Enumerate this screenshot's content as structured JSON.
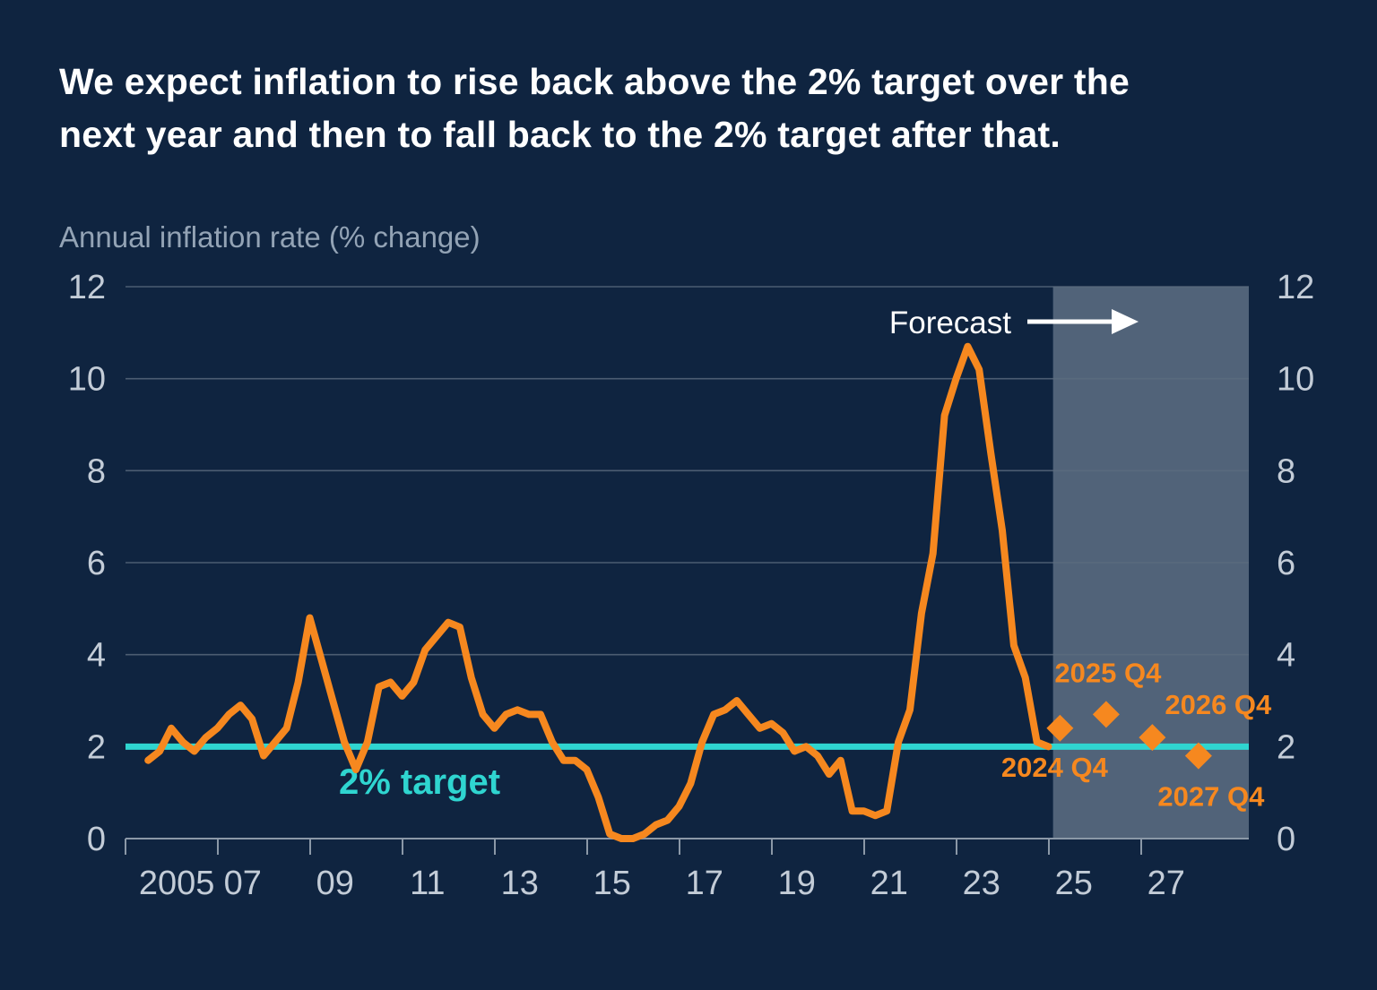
{
  "header": {
    "title_line1": "We expect inflation to rise back above the 2% target over the",
    "title_line2": "next year and then to fall back to the 2% target after that.",
    "subtitle": "Annual inflation rate (% change)"
  },
  "chart_data": {
    "type": "line",
    "title": "Annual inflation rate (% change)",
    "xlabel": "",
    "ylabel": "Annual inflation rate (% change)",
    "ylim": [
      0,
      12
    ],
    "grid": "horizontal",
    "x_start": 2005.0,
    "x_step": 0.25,
    "values": [
      1.7,
      1.9,
      2.4,
      2.1,
      1.9,
      2.2,
      2.4,
      2.7,
      2.9,
      2.6,
      1.8,
      2.1,
      2.4,
      3.4,
      4.8,
      3.9,
      3.0,
      2.1,
      1.5,
      2.1,
      3.3,
      3.4,
      3.1,
      3.4,
      4.1,
      4.4,
      4.7,
      4.6,
      3.5,
      2.7,
      2.4,
      2.7,
      2.8,
      2.7,
      2.7,
      2.1,
      1.7,
      1.7,
      1.5,
      0.9,
      0.1,
      0.0,
      0.0,
      0.1,
      0.3,
      0.4,
      0.7,
      1.2,
      2.1,
      2.7,
      2.8,
      3.0,
      2.7,
      2.4,
      2.5,
      2.3,
      1.9,
      2.0,
      1.8,
      1.4,
      1.7,
      0.6,
      0.6,
      0.5,
      0.6,
      2.1,
      2.8,
      4.9,
      6.2,
      9.2,
      10.0,
      10.7,
      10.2,
      8.4,
      6.7,
      4.2,
      3.5,
      2.1,
      2.0
    ],
    "y_ticks": [
      0,
      2,
      4,
      6,
      8,
      10,
      12
    ],
    "x_tick_labels": [
      {
        "label": "2005",
        "x": 2005.62
      },
      {
        "label": "07",
        "x": 2007.05
      },
      {
        "label": "09",
        "x": 2009.05
      },
      {
        "label": "11",
        "x": 2011.05
      },
      {
        "label": "13",
        "x": 2013.05
      },
      {
        "label": "15",
        "x": 2015.05
      },
      {
        "label": "17",
        "x": 2017.05
      },
      {
        "label": "19",
        "x": 2019.05
      },
      {
        "label": "21",
        "x": 2021.05
      },
      {
        "label": "23",
        "x": 2023.05
      },
      {
        "label": "25",
        "x": 2025.05
      },
      {
        "label": "27",
        "x": 2027.05
      }
    ],
    "target_line": {
      "value": 2,
      "label": "2% target"
    },
    "forecast": {
      "label": "Forecast",
      "band_start_x": 2024.6,
      "points": [
        {
          "label": "2024 Q4",
          "x": 2024.75,
          "y": 2.4
        },
        {
          "label": "2025 Q4",
          "x": 2025.75,
          "y": 2.7
        },
        {
          "label": "2026 Q4",
          "x": 2026.75,
          "y": 2.2
        },
        {
          "label": "2027 Q4",
          "x": 2027.75,
          "y": 1.8
        }
      ]
    },
    "colors": {
      "background": "#0f2440",
      "line": "#f6881f",
      "target": "#2fd5d0",
      "band": "#57697e",
      "grid": "#5c6c7f",
      "axis": "#8b98a7",
      "axis_text": "#c3ccd7",
      "annotation": "#ffffff"
    }
  }
}
